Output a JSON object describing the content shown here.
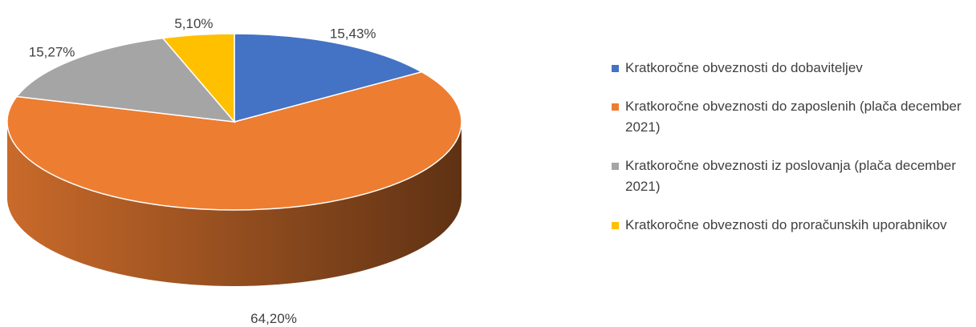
{
  "chart_data": {
    "type": "pie",
    "categories": [
      "Kratkoročne obveznosti do dobaviteljev",
      "Kratkoročne obveznosti do zaposlenih (plača december 2021)",
      "Kratkoročne obveznosti iz poslovanja (plača december 2021)",
      "Kratkoročne obveznosti do proračunskih uporabnikov"
    ],
    "values": [
      15.43,
      64.2,
      15.27,
      5.1
    ],
    "value_labels": [
      "15,43%",
      "64,20%",
      "15,27%",
      "5,10%"
    ],
    "colors": [
      "#4472c4",
      "#ed7d31",
      "#a5a5a5",
      "#ffc000"
    ],
    "legend": "right"
  }
}
